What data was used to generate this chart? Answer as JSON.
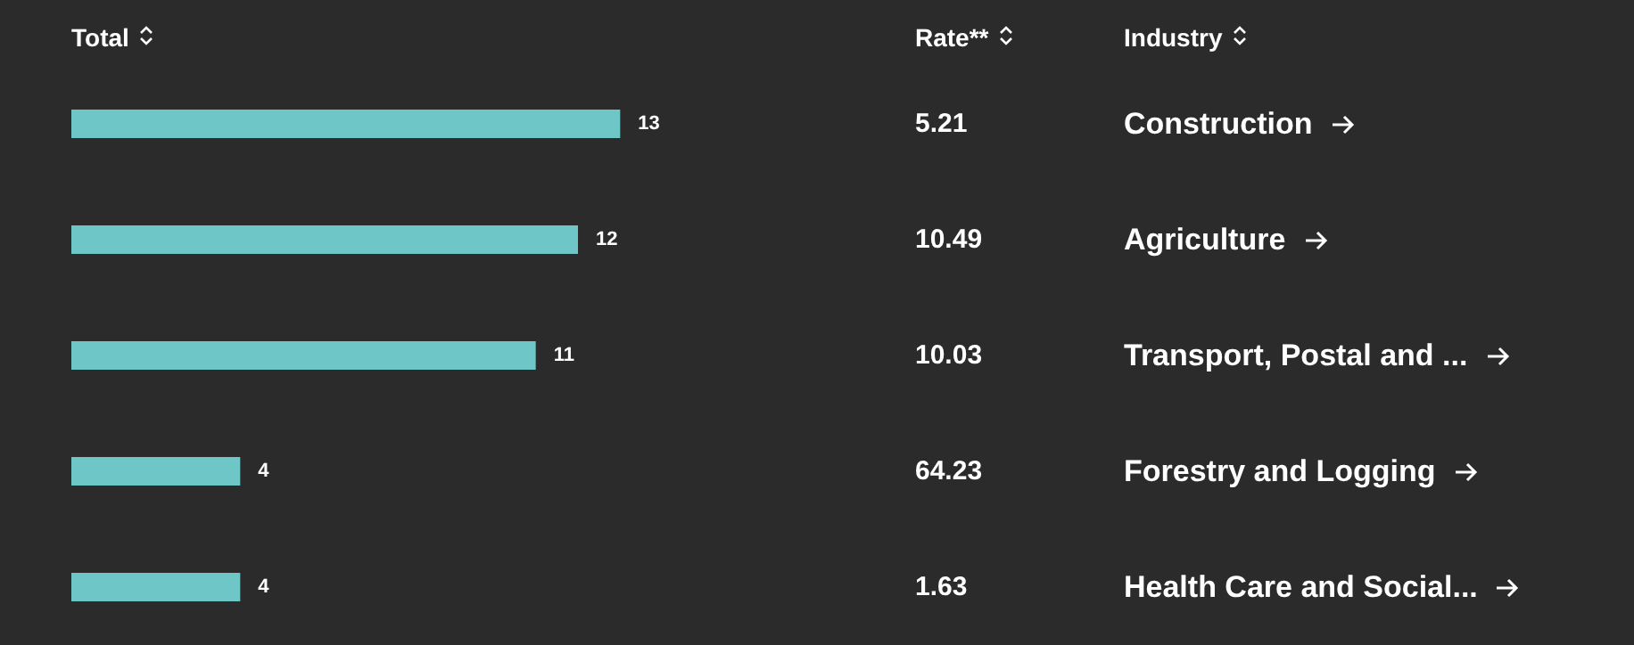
{
  "chart_data": {
    "type": "bar",
    "orientation": "horizontal",
    "xlabel": "Total",
    "ylabel": "Industry",
    "categories": [
      "Construction",
      "Agriculture",
      "Transport, Postal and ...",
      "Forestry and Logging",
      "Health Care and Social..."
    ],
    "values": [
      13,
      12,
      11,
      4,
      4
    ],
    "color": "#6ec6c6",
    "data_labels": true,
    "annotations": [
      "Rate**",
      "5.21",
      "10.49",
      "10.03",
      "64.23",
      "1.63"
    ]
  }
}
